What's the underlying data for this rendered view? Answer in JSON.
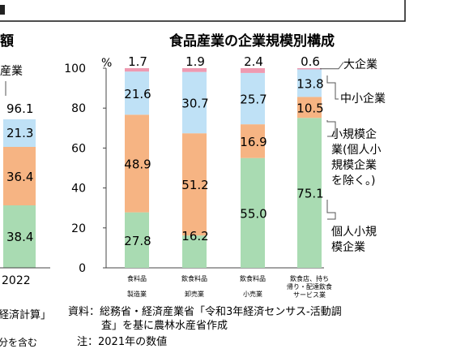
{
  "left_chart": {
    "title_fragment": "額",
    "legend_fragment": "産業",
    "top_total": "96.1",
    "values": [
      "21.3",
      "36.4",
      "38.4"
    ],
    "year": "2022",
    "source_fragment": "経済計算」",
    "note_fragment": "分を含む"
  },
  "chart_data": {
    "type": "bar",
    "stacked": true,
    "title": "食品産業の企業規模別構成",
    "y_unit": "%",
    "ylim": [
      0,
      100
    ],
    "y_ticks": [
      "0",
      "20",
      "40",
      "60",
      "80",
      "100"
    ],
    "categories": [
      [
        "食料品",
        "製造業"
      ],
      [
        "飲食料品",
        "卸売業"
      ],
      [
        "飲食料品",
        "小売業"
      ],
      [
        "飲食店、持ち",
        "帰り・配達飲食",
        "サービス業"
      ]
    ],
    "series": [
      {
        "name": "個人小規模企業",
        "values": [
          27.8,
          16.2,
          55.0,
          75.1
        ],
        "labels": [
          "27.8",
          "16.2",
          "55.0",
          "75.1"
        ],
        "color": "#a9dbb2"
      },
      {
        "name": "小規模企業(個人小規模企業を除く。)",
        "values": [
          48.9,
          51.2,
          16.9,
          10.5
        ],
        "labels": [
          "48.9",
          "51.2",
          "16.9",
          "10.5"
        ],
        "color": "#f6b483"
      },
      {
        "name": "中小企業",
        "values": [
          21.6,
          30.7,
          25.7,
          13.8
        ],
        "labels": [
          "21.6",
          "30.7",
          "25.7",
          "13.8"
        ],
        "color": "#bfe1f6"
      },
      {
        "name": "大企業",
        "values": [
          1.7,
          1.9,
          2.4,
          0.6
        ],
        "labels": [
          "1.7",
          "1.9",
          "2.4",
          "0.6"
        ],
        "color": "#ee9ab1"
      }
    ],
    "legend": [
      {
        "lines": [
          "大企業"
        ]
      },
      {
        "lines": [
          "中小企業"
        ]
      },
      {
        "lines": [
          "小規模企",
          "業(個人小",
          "規模企業",
          "を除く。)"
        ]
      },
      {
        "lines": [
          "個人小規",
          "模企業"
        ]
      }
    ]
  },
  "source": {
    "line1": "資料：総務省・経済産業省「令和3年経済センサス-活動調",
    "line2": "査」を基に農林水産省作成",
    "line3": "注：2021年の数値"
  }
}
